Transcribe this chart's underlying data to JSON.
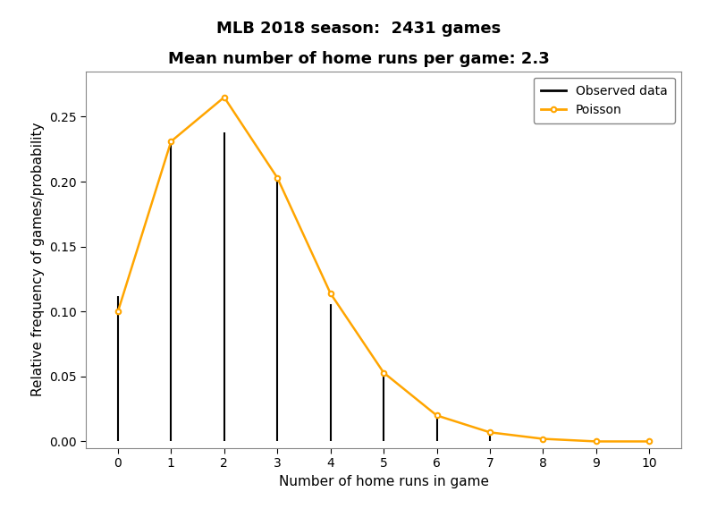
{
  "title_line1": "MLB 2018 season:  2431 games",
  "title_line2": "Mean number of home runs per game: 2.3",
  "xlabel": "Number of home runs in game",
  "ylabel": "Relative frequency of games/probability",
  "x_values": [
    0,
    1,
    2,
    3,
    4,
    5,
    6,
    7,
    8,
    9,
    10
  ],
  "observed": [
    0.112,
    0.23,
    0.238,
    0.201,
    0.106,
    0.051,
    0.019,
    0.005,
    0.002,
    0.001,
    0.0
  ],
  "poisson": [
    0.1,
    0.231,
    0.265,
    0.203,
    0.114,
    0.053,
    0.02,
    0.007,
    0.002,
    0.0,
    0.0
  ],
  "line_color": "#000000",
  "poisson_color": "#FFA500",
  "background_color": "#ffffff",
  "plot_bg_color": "#ffffff",
  "ylim": [
    -0.005,
    0.285
  ],
  "xlim": [
    -0.6,
    10.6
  ],
  "yticks": [
    0.0,
    0.05,
    0.1,
    0.15,
    0.2,
    0.25
  ],
  "title_fontsize": 13,
  "axis_label_fontsize": 11,
  "tick_fontsize": 10,
  "legend_fontsize": 10
}
